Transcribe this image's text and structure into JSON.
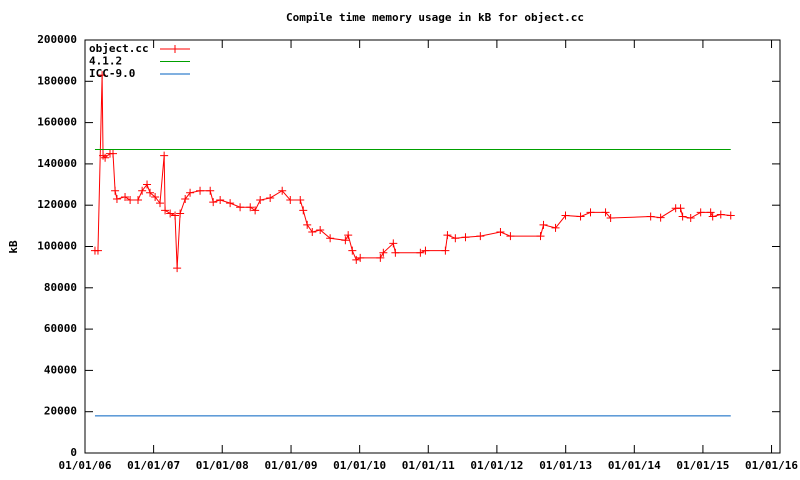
{
  "chart_data": {
    "type": "line",
    "title": "Compile time memory usage in kB for object.cc",
    "y_label": "kB",
    "legend": "top-left",
    "grid": false,
    "xlim": [
      "2006-01-01",
      "2016-02-15"
    ],
    "xticks": [
      {
        "value": "2006-01-01",
        "label": "01/01/06"
      },
      {
        "value": "2007-01-01",
        "label": "01/01/07"
      },
      {
        "value": "2008-01-01",
        "label": "01/01/08"
      },
      {
        "value": "2009-01-01",
        "label": "01/01/09"
      },
      {
        "value": "2010-01-01",
        "label": "01/01/10"
      },
      {
        "value": "2011-01-01",
        "label": "01/01/11"
      },
      {
        "value": "2012-01-01",
        "label": "01/01/12"
      },
      {
        "value": "2013-01-01",
        "label": "01/01/13"
      },
      {
        "value": "2014-01-01",
        "label": "01/01/14"
      },
      {
        "value": "2015-01-01",
        "label": "01/01/15"
      },
      {
        "value": "2016-01-01",
        "label": "01/01/16"
      }
    ],
    "ylim": [
      0,
      200000
    ],
    "yticks": [
      0,
      20000,
      40000,
      60000,
      80000,
      100000,
      120000,
      140000,
      160000,
      180000,
      200000
    ],
    "series": [
      {
        "name": "object.cc",
        "color": "#ff0000",
        "marker": "+",
        "x": [
          "2006-02-23",
          "2006-03-11",
          "2006-04-02",
          "2006-04-07",
          "2006-04-18",
          "2006-05-14",
          "2006-05-30",
          "2006-06-10",
          "2006-06-20",
          "2006-08-02",
          "2006-08-29",
          "2006-10-10",
          "2006-11-01",
          "2006-11-27",
          "2006-12-13",
          "2007-01-09",
          "2007-02-04",
          "2007-02-26",
          "2007-03-03",
          "2007-03-30",
          "2007-04-25",
          "2007-05-06",
          "2007-05-22",
          "2007-06-18",
          "2007-07-14",
          "2007-09-05",
          "2007-10-29",
          "2007-11-14",
          "2007-12-21",
          "2008-02-12",
          "2008-04-05",
          "2008-05-29",
          "2008-06-24",
          "2008-07-21",
          "2008-09-12",
          "2008-11-15",
          "2008-12-28",
          "2009-02-19",
          "2009-03-07",
          "2009-03-28",
          "2009-04-24",
          "2009-06-05",
          "2009-07-28",
          "2009-10-17",
          "2009-11-01",
          "2009-11-23",
          "2009-12-14",
          "2010-01-04",
          "2010-04-21",
          "2010-05-07",
          "2010-06-29",
          "2010-07-10",
          "2010-11-20",
          "2010-12-17",
          "2011-04-02",
          "2011-04-13",
          "2011-05-25",
          "2011-07-18",
          "2011-10-05",
          "2012-01-20",
          "2012-03-13",
          "2012-08-20",
          "2012-09-05",
          "2012-11-08",
          "2012-12-31",
          "2013-03-21",
          "2013-05-13",
          "2013-08-01",
          "2013-08-28",
          "2014-03-29",
          "2014-05-21",
          "2014-08-09",
          "2014-09-04",
          "2014-09-15",
          "2014-10-28",
          "2014-12-20",
          "2015-02-11",
          "2015-02-22",
          "2015-04-06",
          "2015-05-29"
        ],
        "values": [
          98000,
          98000,
          183000,
          144000,
          143000,
          145000,
          145000,
          127000,
          123000,
          124000,
          122500,
          122500,
          127000,
          130000,
          126000,
          124000,
          121000,
          144000,
          117500,
          116000,
          115000,
          89500,
          116000,
          123000,
          126000,
          127000,
          127000,
          121500,
          122500,
          121000,
          119000,
          119000,
          117500,
          122500,
          123500,
          127000,
          122500,
          122500,
          117500,
          110500,
          107000,
          108000,
          104000,
          103000,
          105500,
          98000,
          93500,
          94500,
          94500,
          97000,
          101500,
          97000,
          97000,
          98000,
          98000,
          105500,
          104000,
          104500,
          105000,
          107000,
          105000,
          105000,
          110500,
          109000,
          115000,
          114500,
          116500,
          116500,
          113800,
          114500,
          114000,
          118500,
          118500,
          114500,
          113800,
          116500,
          116500,
          114500,
          115500,
          115000
        ]
      },
      {
        "name": "4.1.2",
        "color": "#00a000",
        "x": [
          "2006-02-23",
          "2015-05-29"
        ],
        "values": [
          147000,
          147000
        ]
      },
      {
        "name": "ICC-9.0",
        "color": "#0060c0",
        "x": [
          "2006-02-23",
          "2015-05-29"
        ],
        "values": [
          18000,
          18000
        ]
      }
    ]
  }
}
